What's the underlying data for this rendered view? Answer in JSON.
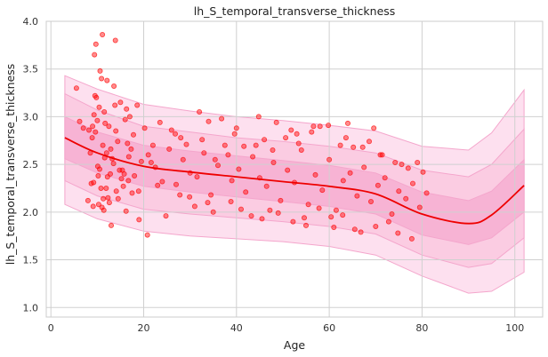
{
  "chart_data": {
    "type": "scatter",
    "title": "lh_S_temporal_transverse_thickness",
    "xlabel": "Age",
    "ylabel": "lh_S_temporal_transverse_thickness",
    "xlim": [
      -1,
      106
    ],
    "ylim": [
      0.9,
      4.0
    ],
    "xticks": [
      0,
      20,
      40,
      60,
      80,
      100
    ],
    "yticks": [
      1.0,
      1.5,
      2.0,
      2.5,
      3.0,
      3.5,
      4.0
    ],
    "xtick_labels": [
      "0",
      "20",
      "40",
      "60",
      "80",
      "100"
    ],
    "ytick_labels": [
      "1.0",
      "1.5",
      "2.0",
      "2.5",
      "3.0",
      "3.5",
      "4.0"
    ],
    "grid": true,
    "background": "#ffffff",
    "colors": {
      "points": "#ff0000",
      "trend": "#ee0000",
      "band_outer": "#fde0ef",
      "band_middle": "#fbcce2",
      "band_inner": "#f7b3d4",
      "band_edge": "#f4a6cc",
      "grid": "#d0d0d0"
    },
    "series": [
      {
        "kind": "trend",
        "x": [
          3,
          10,
          20,
          30,
          40,
          50,
          60,
          70,
          80,
          90,
          95,
          102
        ],
        "y": [
          2.78,
          2.62,
          2.48,
          2.42,
          2.37,
          2.32,
          2.27,
          2.19,
          1.98,
          1.88,
          1.97,
          2.28
        ]
      },
      {
        "kind": "band",
        "level": "outer",
        "x": [
          3,
          10,
          20,
          30,
          40,
          50,
          60,
          70,
          80,
          90,
          95,
          102
        ],
        "upper": [
          3.43,
          3.29,
          3.13,
          3.06,
          3.0,
          2.96,
          2.91,
          2.85,
          2.69,
          2.65,
          2.83,
          3.28
        ],
        "lower": [
          2.08,
          1.93,
          1.8,
          1.75,
          1.72,
          1.69,
          1.64,
          1.55,
          1.33,
          1.15,
          1.17,
          1.37
        ]
      },
      {
        "kind": "band",
        "level": "middle",
        "x": [
          3,
          10,
          20,
          30,
          40,
          50,
          60,
          70,
          80,
          90,
          95,
          102
        ],
        "upper": [
          3.24,
          3.07,
          2.9,
          2.84,
          2.78,
          2.74,
          2.69,
          2.62,
          2.44,
          2.37,
          2.5,
          2.87
        ],
        "lower": [
          2.33,
          2.17,
          2.03,
          1.98,
          1.94,
          1.9,
          1.85,
          1.77,
          1.55,
          1.42,
          1.46,
          1.73
        ]
      },
      {
        "kind": "band",
        "level": "inner",
        "x": [
          3,
          10,
          20,
          30,
          40,
          50,
          60,
          70,
          80,
          90,
          95,
          102
        ],
        "upper": [
          3.0,
          2.84,
          2.7,
          2.64,
          2.59,
          2.54,
          2.49,
          2.41,
          2.21,
          2.12,
          2.22,
          2.55
        ],
        "lower": [
          2.56,
          2.41,
          2.27,
          2.21,
          2.16,
          2.11,
          2.06,
          1.98,
          1.76,
          1.66,
          1.73,
          2.0
        ]
      },
      {
        "kind": "scatter",
        "x": [
          8.5,
          11.2,
          13.5,
          16.8,
          9.6,
          12.8,
          10.4,
          15.2,
          17.3,
          14.1,
          9.2,
          11.7,
          10.1,
          12.3,
          8.9,
          16.0,
          13.2,
          10.8,
          9.8,
          11.0,
          12.0,
          14.8,
          16.5,
          18.0,
          19.5,
          21.0,
          22.5,
          24.0,
          25.5,
          27.0,
          28.5,
          30.0,
          31.5,
          33.0,
          34.5,
          36.0,
          37.5,
          39.0,
          40.5,
          42.0,
          43.5,
          45.0,
          46.5,
          48.0,
          49.5,
          51.0,
          52.5,
          54.0,
          55.5,
          57.0,
          58.5,
          60.0,
          61.5,
          63.0,
          64.5,
          66.0,
          67.5,
          69.0,
          70.5,
          72.0,
          73.5,
          75.0,
          76.5,
          78.0,
          79.5,
          81.0,
          5.5,
          7.0,
          6.2,
          8.0,
          10.6,
          9.4,
          12.6,
          11.4,
          13.8,
          15.6,
          17.8,
          20.2,
          23.5,
          26.8,
          29.2,
          32.6,
          35.4,
          38.2,
          41.6,
          44.2,
          47.8,
          50.6,
          53.4,
          56.2,
          59.8,
          62.4,
          65.2,
          68.6,
          71.4,
          74.2,
          77.0,
          79.0,
          35.0,
          45.5,
          55.0,
          65.5,
          72.8,
          57.8,
          62.9,
          47.2,
          38.8,
          29.9,
          18.9,
          14.5,
          10.3,
          9.1,
          11.9,
          16.2,
          20.8,
          24.8,
          33.8,
          43.2,
          52.2,
          61.0,
          66.8,
          70.0,
          74.8,
          77.8,
          60.4,
          54.6,
          49.0,
          41.0,
          31.0,
          27.8,
          23.0,
          19.0,
          13.0,
          8.2,
          10.0,
          11.5,
          15.0,
          17.0,
          9.5,
          12.5,
          14.0,
          16.3,
          18.6,
          22.0,
          26.0,
          32.0,
          36.8,
          40.0,
          44.8,
          48.6,
          53.0,
          58.0,
          63.6,
          67.2,
          71.0,
          75.6,
          80.2,
          69.6,
          64.0,
          56.6,
          51.8,
          46.0,
          39.6,
          34.0,
          28.0,
          21.6,
          11.1,
          9.7,
          12.1,
          13.6,
          10.9,
          8.7,
          15.8,
          17.5,
          11.6,
          10.2,
          9.3,
          12.9,
          14.4,
          16.7,
          13.9,
          10.5,
          9.0,
          11.3,
          12.2,
          15.4
        ],
        "y": [
          2.62,
          2.7,
          2.51,
          2.58,
          2.84,
          2.4,
          3.1,
          2.35,
          2.66,
          2.22,
          2.31,
          2.93,
          2.48,
          2.15,
          2.78,
          2.97,
          2.56,
          2.25,
          3.2,
          2.05,
          2.62,
          2.44,
          2.72,
          2.38,
          2.53,
          2.6,
          2.47,
          2.32,
          2.66,
          2.29,
          2.55,
          2.41,
          2.37,
          2.62,
          2.18,
          2.49,
          2.7,
          2.33,
          2.45,
          2.21,
          2.58,
          2.36,
          2.27,
          2.52,
          2.12,
          2.44,
          2.31,
          2.65,
          2.08,
          2.39,
          2.23,
          2.55,
          2.02,
          2.33,
          2.41,
          2.17,
          2.47,
          2.11,
          2.28,
          2.36,
          1.98,
          2.22,
          2.14,
          2.3,
          2.05,
          2.2,
          3.3,
          2.88,
          2.95,
          2.12,
          3.48,
          3.65,
          2.1,
          2.02,
          3.12,
          2.27,
          2.81,
          2.88,
          2.94,
          2.82,
          2.71,
          2.76,
          2.55,
          2.6,
          2.69,
          2.7,
          2.65,
          2.78,
          2.72,
          2.84,
          2.91,
          2.7,
          2.68,
          2.74,
          2.6,
          2.52,
          2.46,
          2.52,
          2.0,
          1.93,
          1.86,
          1.82,
          1.9,
          2.04,
          1.97,
          2.02,
          2.11,
          2.16,
          2.22,
          2.14,
          2.08,
          2.06,
          2.25,
          2.01,
          1.76,
          1.96,
          2.1,
          1.96,
          1.9,
          1.84,
          1.79,
          1.85,
          1.78,
          1.72,
          1.95,
          1.94,
          1.99,
          2.03,
          2.06,
          2.18,
          2.28,
          1.92,
          1.86,
          2.86,
          2.96,
          3.05,
          3.15,
          3.0,
          3.22,
          2.9,
          2.85,
          3.08,
          3.12,
          2.7,
          2.86,
          3.05,
          2.98,
          2.88,
          3.0,
          2.94,
          2.82,
          2.9,
          2.78,
          2.68,
          2.6,
          2.5,
          2.42,
          2.88,
          2.93,
          2.9,
          2.86,
          2.76,
          2.82,
          2.95,
          2.78,
          2.52,
          3.86,
          3.76,
          3.38,
          3.32,
          3.4,
          2.3,
          2.4,
          2.2,
          2.57,
          2.38,
          3.02,
          2.66,
          2.74,
          2.33,
          3.8,
          2.45,
          2.9,
          2.14,
          2.37,
          2.44
        ],
        "note": "estimated subset of scatter points"
      }
    ]
  }
}
